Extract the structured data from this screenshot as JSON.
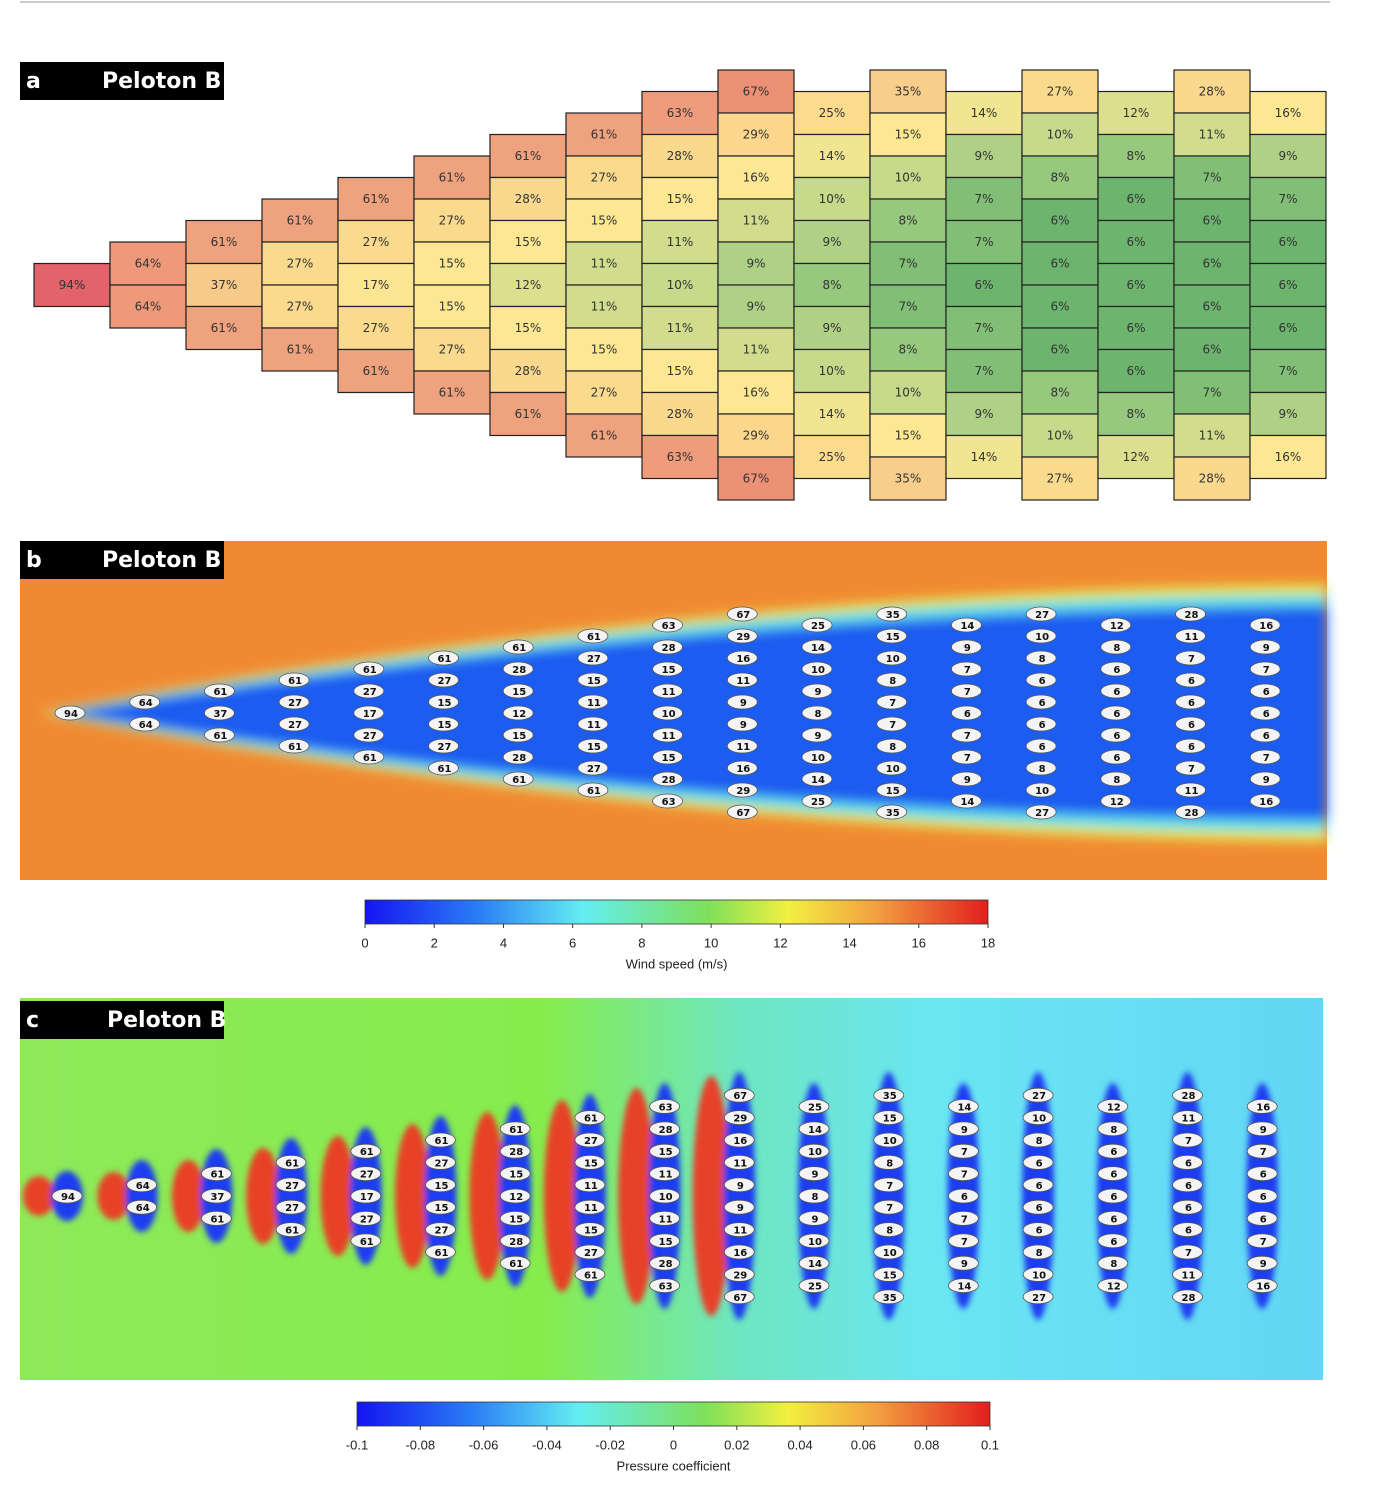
{
  "chart_data": [
    {
      "type": "heatmap",
      "panel": "a",
      "title": "Peloton B",
      "columns": [
        {
          "values": [
            94
          ],
          "value_labels": [
            "94%"
          ]
        },
        {
          "values": [
            64,
            64
          ],
          "value_labels": [
            "64%",
            "64%"
          ]
        },
        {
          "values": [
            61,
            37,
            61
          ],
          "value_labels": [
            "61%",
            "37%",
            "61%"
          ]
        },
        {
          "values": [
            61,
            27,
            27,
            61
          ],
          "value_labels": [
            "61%",
            "27%",
            "27%",
            "61%"
          ]
        },
        {
          "values": [
            61,
            27,
            17,
            27,
            61
          ],
          "value_labels": [
            "61%",
            "27%",
            "17%",
            "27%",
            "61%"
          ]
        },
        {
          "values": [
            61,
            27,
            15,
            15,
            27,
            61
          ],
          "value_labels": [
            "61%",
            "27%",
            "15%",
            "15%",
            "27%",
            "61%"
          ]
        },
        {
          "values": [
            61,
            28,
            15,
            12,
            15,
            28,
            61
          ],
          "value_labels": [
            "61%",
            "28%",
            "15%",
            "12%",
            "15%",
            "28%",
            "61%"
          ]
        },
        {
          "values": [
            61,
            27,
            15,
            11,
            11,
            15,
            27,
            61
          ],
          "value_labels": [
            "61%",
            "27%",
            "15%",
            "11%",
            "11%",
            "15%",
            "27%",
            "61%"
          ]
        },
        {
          "values": [
            63,
            28,
            15,
            11,
            10,
            11,
            15,
            28,
            63
          ],
          "value_labels": [
            "63%",
            "28%",
            "15%",
            "11%",
            "10%",
            "11%",
            "15%",
            "28%",
            "63%"
          ]
        },
        {
          "values": [
            67,
            29,
            16,
            11,
            9,
            9,
            11,
            16,
            29,
            67
          ],
          "value_labels": [
            "67%",
            "29%",
            "16%",
            "11%",
            "9%",
            "9%",
            "11%",
            "16%",
            "29%",
            "67%"
          ]
        },
        {
          "values": [
            25,
            14,
            10,
            9,
            8,
            9,
            10,
            14,
            25
          ],
          "value_labels": [
            "25%",
            "14%",
            "10%",
            "9%",
            "8%",
            "9%",
            "10%",
            "14%",
            "25%"
          ]
        },
        {
          "values": [
            35,
            15,
            10,
            8,
            7,
            7,
            8,
            10,
            15,
            35
          ],
          "value_labels": [
            "35%",
            "15%",
            "10%",
            "8%",
            "7%",
            "7%",
            "8%",
            "10%",
            "15%",
            "35%"
          ]
        },
        {
          "values": [
            14,
            9,
            7,
            7,
            6,
            7,
            7,
            9,
            14
          ],
          "value_labels": [
            "14%",
            "9%",
            "7%",
            "7%",
            "6%",
            "7%",
            "7%",
            "9%",
            "14%"
          ]
        },
        {
          "values": [
            27,
            10,
            8,
            6,
            6,
            6,
            6,
            8,
            10,
            27
          ],
          "value_labels": [
            "27%",
            "10%",
            "8%",
            "6%",
            "6%",
            "6%",
            "6%",
            "8%",
            "10%",
            "27%"
          ]
        },
        {
          "values": [
            12,
            8,
            6,
            6,
            6,
            6,
            6,
            8,
            12
          ],
          "value_labels": [
            "12%",
            "8%",
            "6%",
            "6%",
            "6%",
            "6%",
            "6%",
            "8%",
            "12%"
          ]
        },
        {
          "values": [
            28,
            11,
            7,
            6,
            6,
            6,
            6,
            7,
            11,
            28
          ],
          "value_labels": [
            "28%",
            "11%",
            "7%",
            "6%",
            "6%",
            "6%",
            "6%",
            "7%",
            "11%",
            "28%"
          ]
        },
        {
          "values": [
            16,
            9,
            7,
            6,
            6,
            6,
            7,
            9,
            16
          ],
          "value_labels": [
            "16%",
            "9%",
            "7%",
            "6%",
            "6%",
            "6%",
            "7%",
            "9%",
            "16%"
          ]
        }
      ]
    },
    {
      "type": "field",
      "panel": "b",
      "title": "Peloton B",
      "colorbar": {
        "label": "Wind speed (m/s)",
        "lim": [
          0,
          18
        ],
        "ticks": [
          0,
          2,
          4,
          6,
          8,
          10,
          12,
          14,
          16,
          18
        ]
      }
    },
    {
      "type": "field",
      "panel": "c",
      "title": "Peloton B",
      "colorbar": {
        "label": "Pressure coefficient",
        "lim": [
          -0.1,
          0.1
        ],
        "ticks": [
          -0.1,
          -0.08,
          -0.06,
          -0.04,
          -0.02,
          0,
          0.02,
          0.04,
          0.06,
          0.08,
          0.1
        ]
      }
    }
  ]
}
